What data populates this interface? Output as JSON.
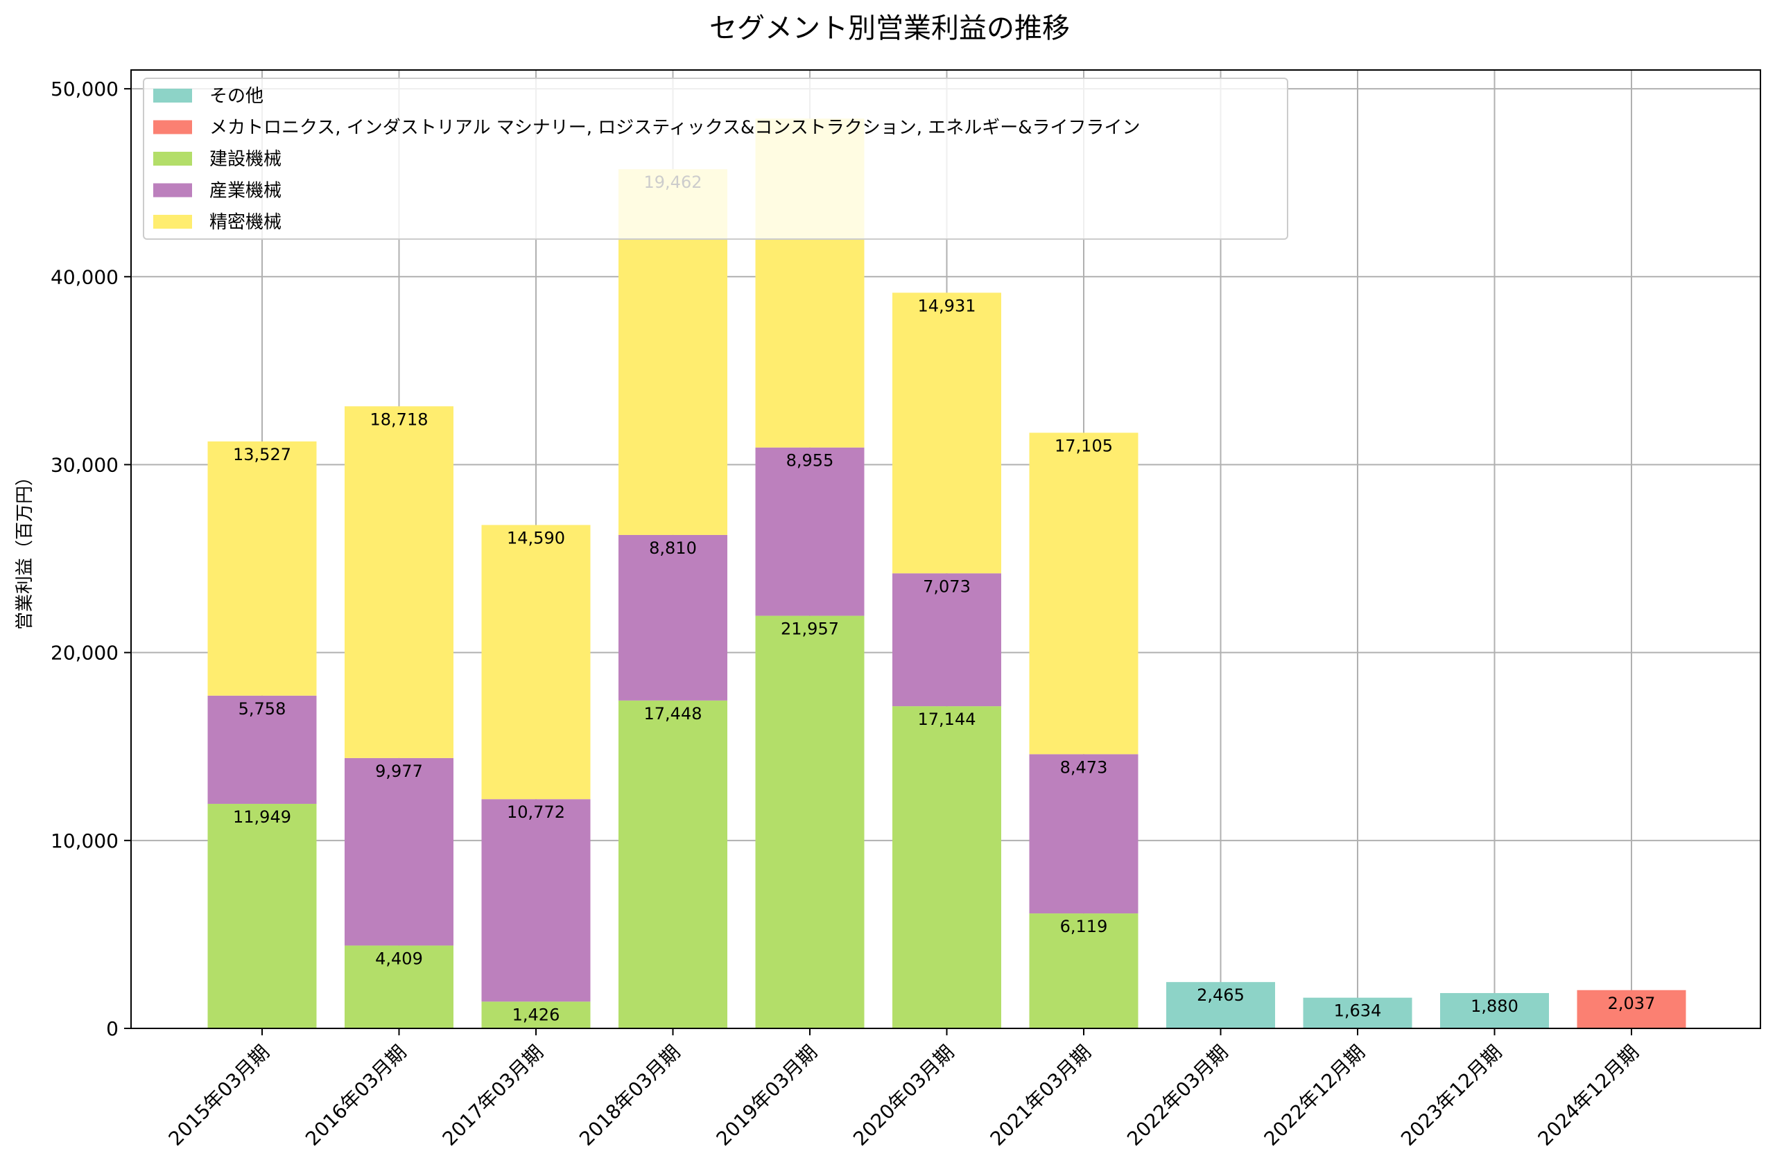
{
  "chart_data": {
    "type": "bar",
    "stacked": true,
    "title": "セグメント別営業利益の推移",
    "xlabel": "",
    "ylabel": "営業利益（百万円）",
    "ylim": [
      0,
      51000
    ],
    "yticks": [
      0,
      10000,
      20000,
      30000,
      40000,
      50000
    ],
    "ytick_labels": [
      "0",
      "10,000",
      "20,000",
      "30,000",
      "40,000",
      "50,000"
    ],
    "grid": true,
    "legend_position": "top-left",
    "categories": [
      "2015年03月期",
      "2016年03月期",
      "2017年03月期",
      "2018年03月期",
      "2019年03月期",
      "2020年03月期",
      "2021年03月期",
      "2022年03月期",
      "2022年12月期",
      "2023年12月期",
      "2024年12月期"
    ],
    "series": [
      {
        "name": "建設機械",
        "color": "#b3de69",
        "values": [
          11949,
          4409,
          1426,
          17448,
          21957,
          17144,
          6119,
          0,
          0,
          0,
          0
        ],
        "labels": [
          "11,949",
          "4,409",
          "1,426",
          "17,448",
          "21,957",
          "17,144",
          "6,119",
          "",
          "",
          "",
          ""
        ]
      },
      {
        "name": "産業機械",
        "color": "#bc80bd",
        "values": [
          5758,
          9977,
          10772,
          8810,
          8955,
          7073,
          8473,
          0,
          0,
          0,
          0
        ],
        "labels": [
          "5,758",
          "9,977",
          "10,772",
          "8,810",
          "8,955",
          "7,073",
          "8,473",
          "",
          "",
          "",
          ""
        ]
      },
      {
        "name": "精密機械",
        "color": "#ffed6f",
        "values": [
          13527,
          18718,
          14590,
          19462,
          17500,
          14931,
          17105,
          0,
          0,
          0,
          0
        ],
        "labels": [
          "13,527",
          "18,718",
          "14,590",
          "19,462",
          "",
          "14,931",
          "17,105",
          "",
          "",
          "",
          ""
        ]
      },
      {
        "name": "メカトロニクス, インダストリアル マシナリー, ロジスティックス&コンストラクション, エネルギー&ライフライン",
        "color": "#fb8072",
        "values": [
          0,
          0,
          0,
          0,
          0,
          0,
          0,
          0,
          0,
          0,
          2037
        ],
        "labels": [
          "",
          "",
          "",
          "",
          "",
          "",
          "",
          "",
          "",
          "",
          "2,037"
        ]
      },
      {
        "name": "その他",
        "color": "#8dd3c7",
        "values": [
          0,
          0,
          0,
          0,
          0,
          0,
          0,
          2465,
          1634,
          1880,
          0
        ],
        "labels": [
          "",
          "",
          "",
          "",
          "",
          "",
          "",
          "2,465",
          "1,634",
          "1,880",
          ""
        ]
      }
    ],
    "legend_order": [
      "その他",
      "メカトロニクス, インダストリアル マシナリー, ロジスティックス&コンストラクション, エネルギー&ライフライン",
      "建設機械",
      "産業機械",
      "精密機械"
    ]
  }
}
